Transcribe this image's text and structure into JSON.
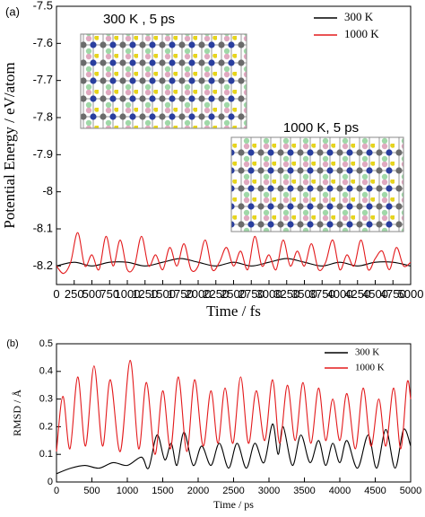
{
  "chart_data": [
    {
      "type": "line",
      "panel_label": "(a)",
      "x_label": "Time / fs",
      "y_label": "Potential Energy / eV/atom",
      "annotations": [
        "300 K , 5 ps",
        "1000 K, 5 ps"
      ],
      "xlim": [
        0,
        5000
      ],
      "xticks": [
        0,
        250,
        500,
        750,
        1000,
        1250,
        1500,
        1750,
        2000,
        2250,
        2500,
        2750,
        3000,
        3250,
        3500,
        3750,
        4000,
        4250,
        4500,
        4750,
        5000
      ],
      "ylim": [
        -8.25,
        -7.5
      ],
      "yticks": [
        -7.5,
        -7.6,
        -7.7,
        -7.8,
        -7.9,
        -8.0,
        -8.1,
        -8.2
      ],
      "legend": "top-right",
      "series": [
        {
          "name": "300 K",
          "color": "#000000",
          "x": [
            0,
            250,
            500,
            750,
            1000,
            1250,
            1500,
            1750,
            2000,
            2250,
            2500,
            2750,
            3000,
            3250,
            3500,
            3750,
            4000,
            4250,
            4500,
            4750,
            5000
          ],
          "values": [
            -8.2,
            -8.19,
            -8.2,
            -8.19,
            -8.19,
            -8.2,
            -8.19,
            -8.18,
            -8.19,
            -8.2,
            -8.19,
            -8.2,
            -8.19,
            -8.18,
            -8.19,
            -8.2,
            -8.19,
            -8.2,
            -8.19,
            -8.19,
            -8.2
          ]
        },
        {
          "name": "1000 K",
          "color": "#e31a1c",
          "x": [
            0,
            100,
            200,
            300,
            400,
            500,
            600,
            700,
            800,
            900,
            1000,
            1100,
            1200,
            1300,
            1400,
            1500,
            1600,
            1700,
            1800,
            1900,
            2000,
            2100,
            2200,
            2300,
            2400,
            2500,
            2600,
            2700,
            2800,
            2900,
            3000,
            3100,
            3200,
            3300,
            3400,
            3500,
            3600,
            3700,
            3800,
            3900,
            4000,
            4100,
            4200,
            4300,
            4400,
            4500,
            4600,
            4700,
            4800,
            4900,
            5000
          ],
          "values": [
            -8.2,
            -8.22,
            -8.19,
            -8.11,
            -8.2,
            -8.17,
            -8.21,
            -8.12,
            -8.2,
            -8.13,
            -8.21,
            -8.2,
            -8.12,
            -8.2,
            -8.17,
            -8.21,
            -8.15,
            -8.2,
            -8.14,
            -8.21,
            -8.2,
            -8.13,
            -8.21,
            -8.19,
            -8.15,
            -8.2,
            -8.16,
            -8.21,
            -8.12,
            -8.2,
            -8.17,
            -8.21,
            -8.13,
            -8.2,
            -8.16,
            -8.2,
            -8.14,
            -8.21,
            -8.19,
            -8.13,
            -8.21,
            -8.17,
            -8.2,
            -8.13,
            -8.21,
            -8.18,
            -8.16,
            -8.21,
            -8.15,
            -8.2,
            -8.19
          ]
        }
      ]
    },
    {
      "type": "line",
      "panel_label": "(b)",
      "x_label": "Time / ps",
      "y_label": "RMSD / Å",
      "xlim": [
        0,
        5000
      ],
      "xticks": [
        0,
        500,
        1000,
        1500,
        2000,
        2500,
        3000,
        3500,
        4000,
        4500,
        5000
      ],
      "ylim": [
        0,
        0.5
      ],
      "yticks": [
        0.0,
        0.1,
        0.2,
        0.3,
        0.4,
        0.5
      ],
      "legend": "top-right",
      "series": [
        {
          "name": "300 K",
          "color": "#000000",
          "x": [
            0,
            200,
            400,
            600,
            800,
            1000,
            1200,
            1300,
            1420,
            1530,
            1620,
            1700,
            1800,
            1930,
            2050,
            2180,
            2300,
            2430,
            2550,
            2680,
            2800,
            2930,
            3050,
            3130,
            3200,
            3330,
            3450,
            3580,
            3700,
            3800,
            3900,
            4000,
            4100,
            4250,
            4400,
            4520,
            4650,
            4780,
            4900,
            5000
          ],
          "values": [
            0.03,
            0.05,
            0.06,
            0.05,
            0.07,
            0.06,
            0.09,
            0.05,
            0.17,
            0.08,
            0.14,
            0.06,
            0.18,
            0.06,
            0.13,
            0.06,
            0.14,
            0.05,
            0.14,
            0.05,
            0.14,
            0.07,
            0.21,
            0.1,
            0.2,
            0.06,
            0.17,
            0.07,
            0.15,
            0.06,
            0.14,
            0.07,
            0.15,
            0.05,
            0.17,
            0.05,
            0.19,
            0.05,
            0.19,
            0.13
          ]
        },
        {
          "name": "1000 K",
          "color": "#e31a1c",
          "x": [
            0,
            90,
            190,
            300,
            410,
            530,
            650,
            760,
            900,
            1040,
            1160,
            1270,
            1390,
            1500,
            1610,
            1720,
            1840,
            1950,
            2070,
            2180,
            2280,
            2380,
            2490,
            2600,
            2710,
            2820,
            2940,
            3050,
            3150,
            3260,
            3370,
            3480,
            3590,
            3700,
            3800,
            3900,
            4000,
            4100,
            4220,
            4330,
            4440,
            4550,
            4650,
            4760,
            4860,
            4950,
            5000
          ],
          "values": [
            0.11,
            0.31,
            0.12,
            0.38,
            0.13,
            0.42,
            0.13,
            0.37,
            0.11,
            0.44,
            0.12,
            0.36,
            0.1,
            0.33,
            0.12,
            0.38,
            0.11,
            0.37,
            0.13,
            0.33,
            0.14,
            0.34,
            0.14,
            0.38,
            0.14,
            0.33,
            0.15,
            0.37,
            0.14,
            0.35,
            0.15,
            0.36,
            0.14,
            0.34,
            0.15,
            0.3,
            0.15,
            0.32,
            0.12,
            0.34,
            0.13,
            0.3,
            0.13,
            0.34,
            0.12,
            0.36,
            0.3
          ]
        }
      ]
    }
  ]
}
